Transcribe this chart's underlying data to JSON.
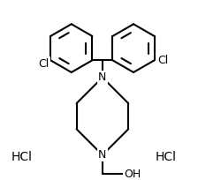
{
  "background_color": "#ffffff",
  "line_color": "#000000",
  "line_width": 1.5,
  "font_size": 9,
  "labels": {
    "Cl_left": "Cl",
    "Cl_right": "Cl",
    "N_top": "N",
    "N_bottom": "N",
    "OH": "OH",
    "HCl_left": "HCl",
    "HCl_right": "HCl"
  }
}
